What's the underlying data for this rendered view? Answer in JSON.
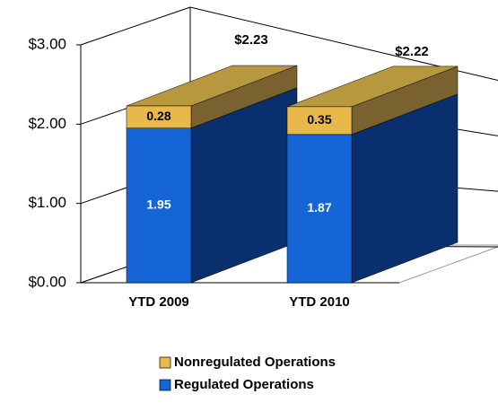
{
  "chart_data": {
    "type": "bar3d_stacked",
    "categories": [
      "YTD 2009",
      "YTD 2010"
    ],
    "series": [
      {
        "name": "Regulated Operations",
        "color": "#1565d6",
        "values": [
          1.95,
          1.87
        ]
      },
      {
        "name": "Nonregulated Operations",
        "color": "#e8b84a",
        "values": [
          0.28,
          0.35
        ]
      }
    ],
    "totals": [
      2.23,
      2.22
    ],
    "total_labels": [
      "$2.23",
      "$2.22"
    ],
    "ylim": [
      0,
      3
    ],
    "yticks": [
      {
        "value": 0,
        "label": "$0.00"
      },
      {
        "value": 1,
        "label": "$1.00"
      },
      {
        "value": 2,
        "label": "$2.00"
      },
      {
        "value": 3,
        "label": "$3.00"
      }
    ],
    "grid": true
  }
}
